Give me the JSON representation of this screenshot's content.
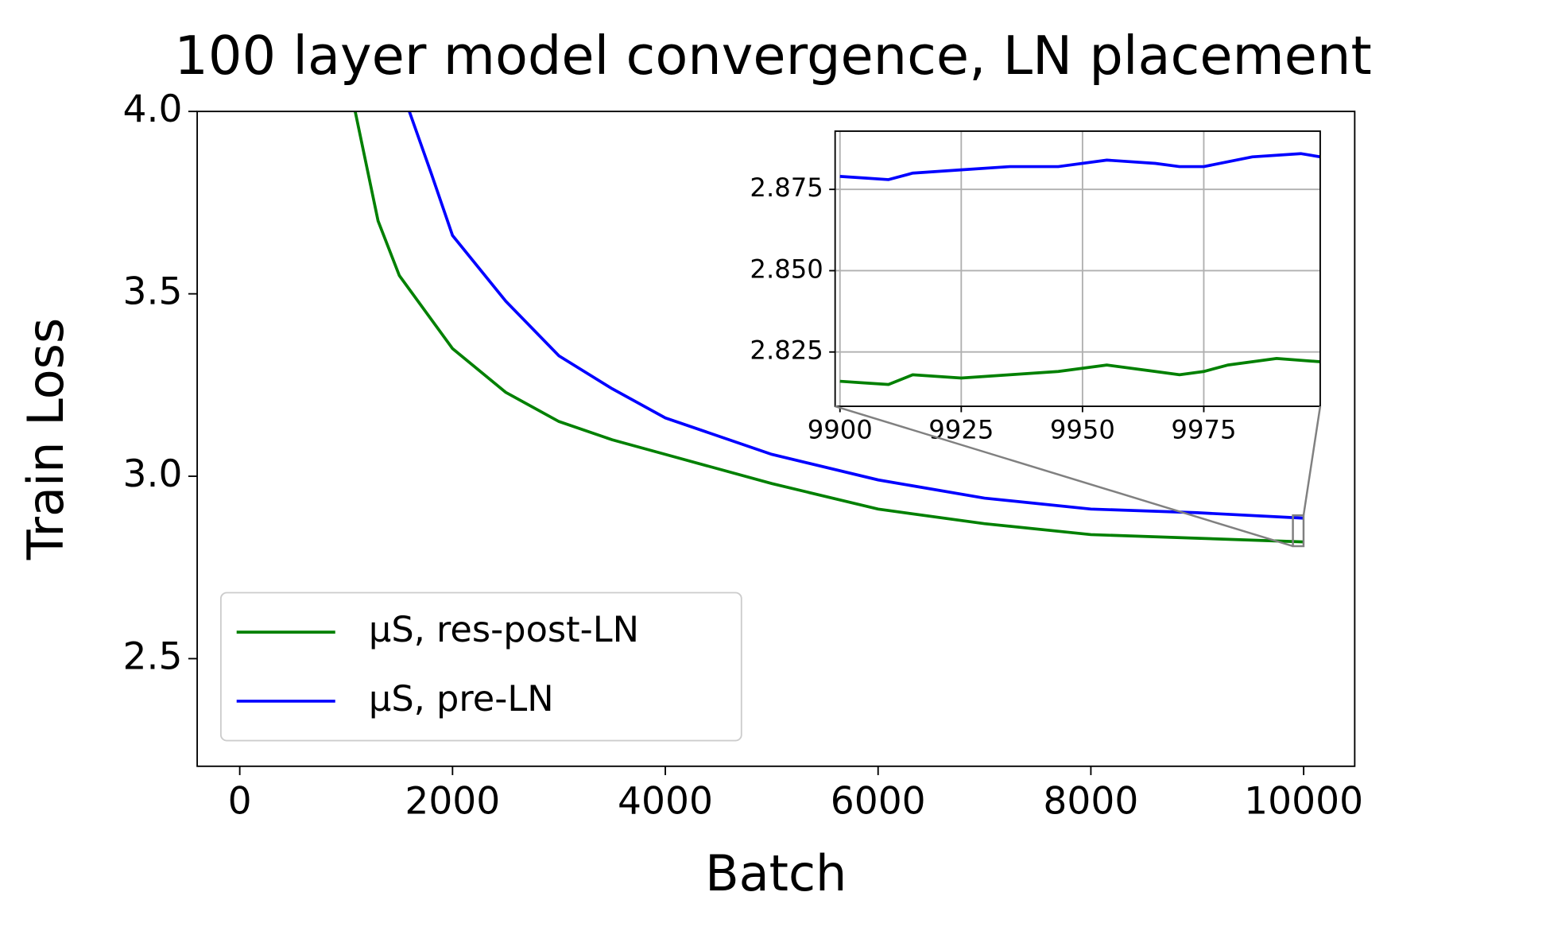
{
  "chart_data": [
    {
      "type": "line",
      "title": "100 layer model convergence, LN placement",
      "x_label": "Batch",
      "y_label": "Train Loss",
      "xlim": [
        -400,
        10480
      ],
      "ylim": [
        2.205,
        4.0
      ],
      "xticks": [
        0,
        2000,
        4000,
        6000,
        8000,
        10000
      ],
      "yticks": [
        2.5,
        {
          "value": 3.0,
          "label": "3.0"
        },
        3.5,
        {
          "value": 4.0,
          "label": "4.0"
        }
      ],
      "grid": false,
      "legend": "lower left",
      "series": [
        {
          "name": "μS, res-post-LN",
          "color": "#008000",
          "x": [
            1085,
            1300,
            1500,
            2000,
            2500,
            3000,
            3500,
            4000,
            5000,
            6000,
            7000,
            8000,
            9000,
            10000
          ],
          "values": [
            4.0,
            3.7,
            3.55,
            3.35,
            3.23,
            3.15,
            3.1,
            3.06,
            2.98,
            2.91,
            2.87,
            2.84,
            2.83,
            2.82
          ]
        },
        {
          "name": "μS, pre-LN",
          "color": "#0000ff",
          "x": [
            1594,
            1800,
            2000,
            2500,
            3000,
            3500,
            4000,
            5000,
            6000,
            7000,
            8000,
            9000,
            10000
          ],
          "values": [
            4.0,
            3.83,
            3.66,
            3.48,
            3.33,
            3.24,
            3.16,
            3.06,
            2.99,
            2.94,
            2.91,
            2.9,
            2.885
          ]
        }
      ]
    },
    {
      "type": "line",
      "xlim": [
        9899,
        9999
      ],
      "ylim": [
        2.8083,
        2.8929
      ],
      "xticks": [
        9900,
        9925,
        9950,
        9975
      ],
      "yticks": [
        2.825,
        {
          "value": 2.85,
          "label": "2.850"
        },
        2.875
      ],
      "grid": true,
      "series": [
        {
          "color": "#008000",
          "x": [
            9900,
            9905,
            9910,
            9915,
            9925,
            9935,
            9945,
            9955,
            9965,
            9970,
            9975,
            9980,
            9990,
            9999
          ],
          "values": [
            2.816,
            2.8155,
            2.815,
            2.818,
            2.817,
            2.818,
            2.819,
            2.821,
            2.819,
            2.818,
            2.819,
            2.821,
            2.823,
            2.822
          ]
        },
        {
          "color": "#0000ff",
          "x": [
            9900,
            9905,
            9910,
            9915,
            9925,
            9935,
            9945,
            9955,
            9965,
            9970,
            9975,
            9985,
            9995,
            9999
          ],
          "values": [
            2.879,
            2.8785,
            2.878,
            2.88,
            2.881,
            2.882,
            2.882,
            2.884,
            2.883,
            2.882,
            2.882,
            2.885,
            2.886,
            2.885
          ]
        }
      ]
    }
  ]
}
